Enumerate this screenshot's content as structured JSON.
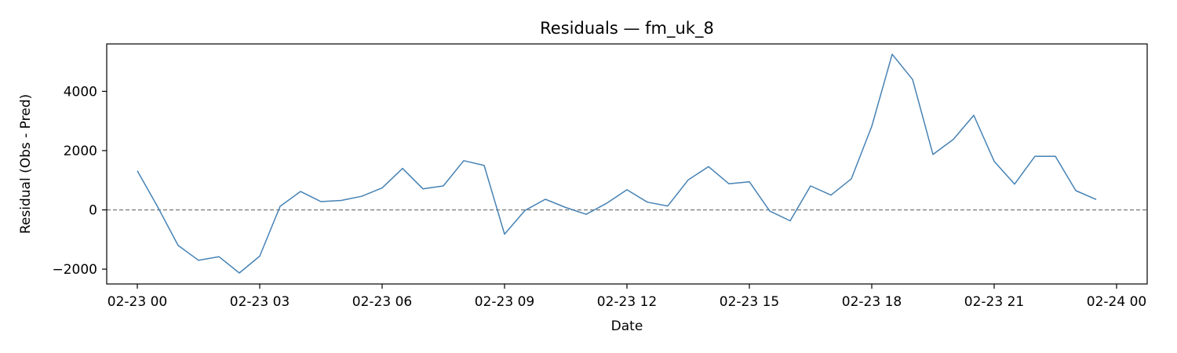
{
  "chart_data": {
    "type": "line",
    "title": "Residuals — fm_uk_8",
    "xlabel": "Date",
    "ylabel": "Residual (Obs - Pred)",
    "xlim": [
      "2023-02-22 23:15",
      "2023-02-24 00:45"
    ],
    "ylim": [
      -2500,
      5600
    ],
    "x_ticks": [
      {
        "value": "2023-02-23 00:00",
        "label": "02-23 00"
      },
      {
        "value": "2023-02-23 03:00",
        "label": "02-23 03"
      },
      {
        "value": "2023-02-23 06:00",
        "label": "02-23 06"
      },
      {
        "value": "2023-02-23 09:00",
        "label": "02-23 09"
      },
      {
        "value": "2023-02-23 12:00",
        "label": "02-23 12"
      },
      {
        "value": "2023-02-23 15:00",
        "label": "02-23 15"
      },
      {
        "value": "2023-02-23 18:00",
        "label": "02-23 18"
      },
      {
        "value": "2023-02-23 21:00",
        "label": "02-23 21"
      },
      {
        "value": "2023-02-24 00:00",
        "label": "02-24 00"
      }
    ],
    "y_ticks": [
      {
        "value": -2000,
        "label": "−2000"
      },
      {
        "value": 0,
        "label": "0"
      },
      {
        "value": 2000,
        "label": "2000"
      },
      {
        "value": 4000,
        "label": "4000"
      }
    ],
    "reference_line": {
      "y": 0,
      "style": "dashed",
      "color": "#808080"
    },
    "grid": false,
    "colors": {
      "line": "#4682b4"
    },
    "series": [
      {
        "x": [
          "2023-02-23 00:00",
          "2023-02-23 00:30",
          "2023-02-23 01:00",
          "2023-02-23 01:30",
          "2023-02-23 02:00",
          "2023-02-23 02:30",
          "2023-02-23 03:00",
          "2023-02-23 03:30",
          "2023-02-23 04:00",
          "2023-02-23 04:30",
          "2023-02-23 05:00",
          "2023-02-23 05:30",
          "2023-02-23 06:00",
          "2023-02-23 06:30",
          "2023-02-23 07:00",
          "2023-02-23 07:30",
          "2023-02-23 08:00",
          "2023-02-23 08:30",
          "2023-02-23 09:00",
          "2023-02-23 09:30",
          "2023-02-23 10:00",
          "2023-02-23 10:30",
          "2023-02-23 11:00",
          "2023-02-23 11:30",
          "2023-02-23 12:00",
          "2023-02-23 12:30",
          "2023-02-23 13:00",
          "2023-02-23 13:30",
          "2023-02-23 14:00",
          "2023-02-23 14:30",
          "2023-02-23 15:00",
          "2023-02-23 15:30",
          "2023-02-23 16:00",
          "2023-02-23 16:30",
          "2023-02-23 17:00",
          "2023-02-23 17:30",
          "2023-02-23 18:00",
          "2023-02-23 18:30",
          "2023-02-23 19:00",
          "2023-02-23 19:30",
          "2023-02-23 20:00",
          "2023-02-23 20:30",
          "2023-02-23 21:00",
          "2023-02-23 21:30",
          "2023-02-23 22:00",
          "2023-02-23 22:30",
          "2023-02-23 23:00",
          "2023-02-23 23:30"
        ],
        "values": [
          1320,
          100,
          -1200,
          -1700,
          -1580,
          -2130,
          -1560,
          120,
          620,
          280,
          320,
          460,
          740,
          1400,
          710,
          810,
          1660,
          1500,
          -820,
          -20,
          360,
          80,
          -150,
          220,
          680,
          260,
          130,
          1010,
          1460,
          880,
          950,
          -40,
          -370,
          810,
          500,
          1050,
          2820,
          5250,
          4400,
          1870,
          2380,
          3190,
          1640,
          870,
          1810,
          1810,
          650,
          350
        ]
      }
    ]
  }
}
